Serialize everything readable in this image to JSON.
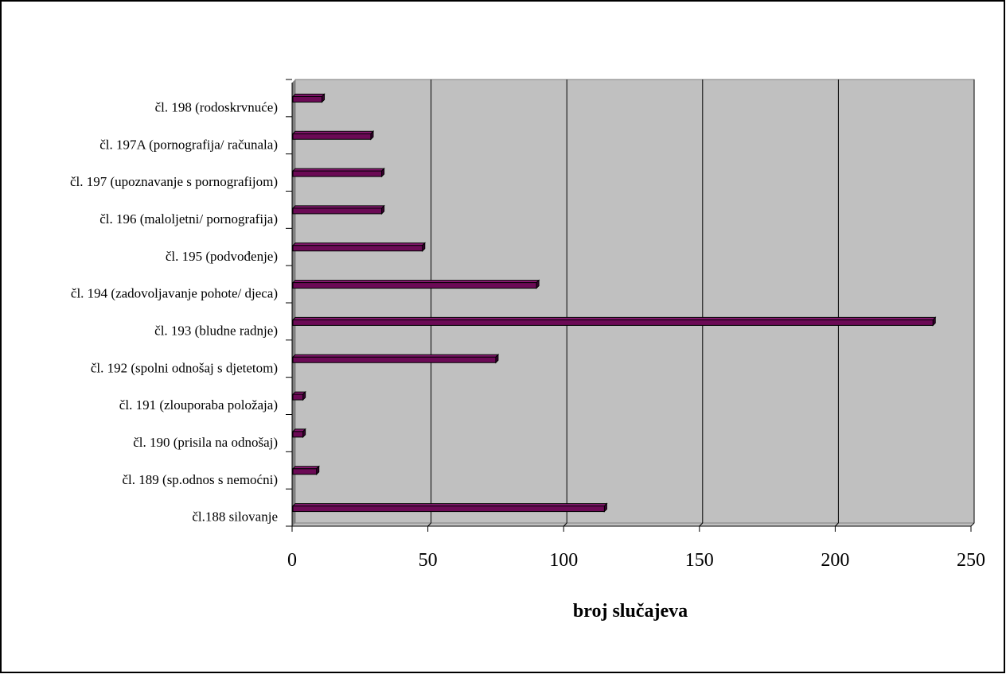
{
  "chart_data": {
    "type": "bar",
    "orientation": "horizontal",
    "categories": [
      "čl. 198 (rodoskrvnuće)",
      "čl. 197A (pornografija/ računala)",
      "čl. 197 (upoznavanje s pornografijom)",
      "čl. 196 (maloljetni/ pornografija)",
      "čl. 195 (podvođenje)",
      "čl. 194 (zadovoljavanje pohote/ djeca)",
      "čl. 193 (bludne radnje)",
      "čl. 192 (spolni odnošaj s djetetom)",
      "čl. 191 (zlouporaba položaja)",
      "čl. 190 (prisila na odnošaj)",
      "čl. 189 (sp.odnos s nemoćni)",
      "čl.188 silovanje"
    ],
    "values": [
      11,
      29,
      33,
      33,
      48,
      90,
      236,
      75,
      4,
      4,
      9,
      115
    ],
    "xlabel": "broj slučajeva",
    "ylabel": "",
    "xlim": [
      0,
      250
    ],
    "xticks": [
      "0",
      "50",
      "100",
      "150",
      "200",
      "250"
    ],
    "grid": "vertical",
    "legend": "none",
    "colors": {
      "bar_front": "#6b0a55",
      "bar_top": "#8a1873",
      "bar_side": "#3a0030",
      "plot_background": "#c0c0c0",
      "wall_side": "#808080",
      "gridline": "#000000",
      "page_border": "#000000"
    }
  }
}
